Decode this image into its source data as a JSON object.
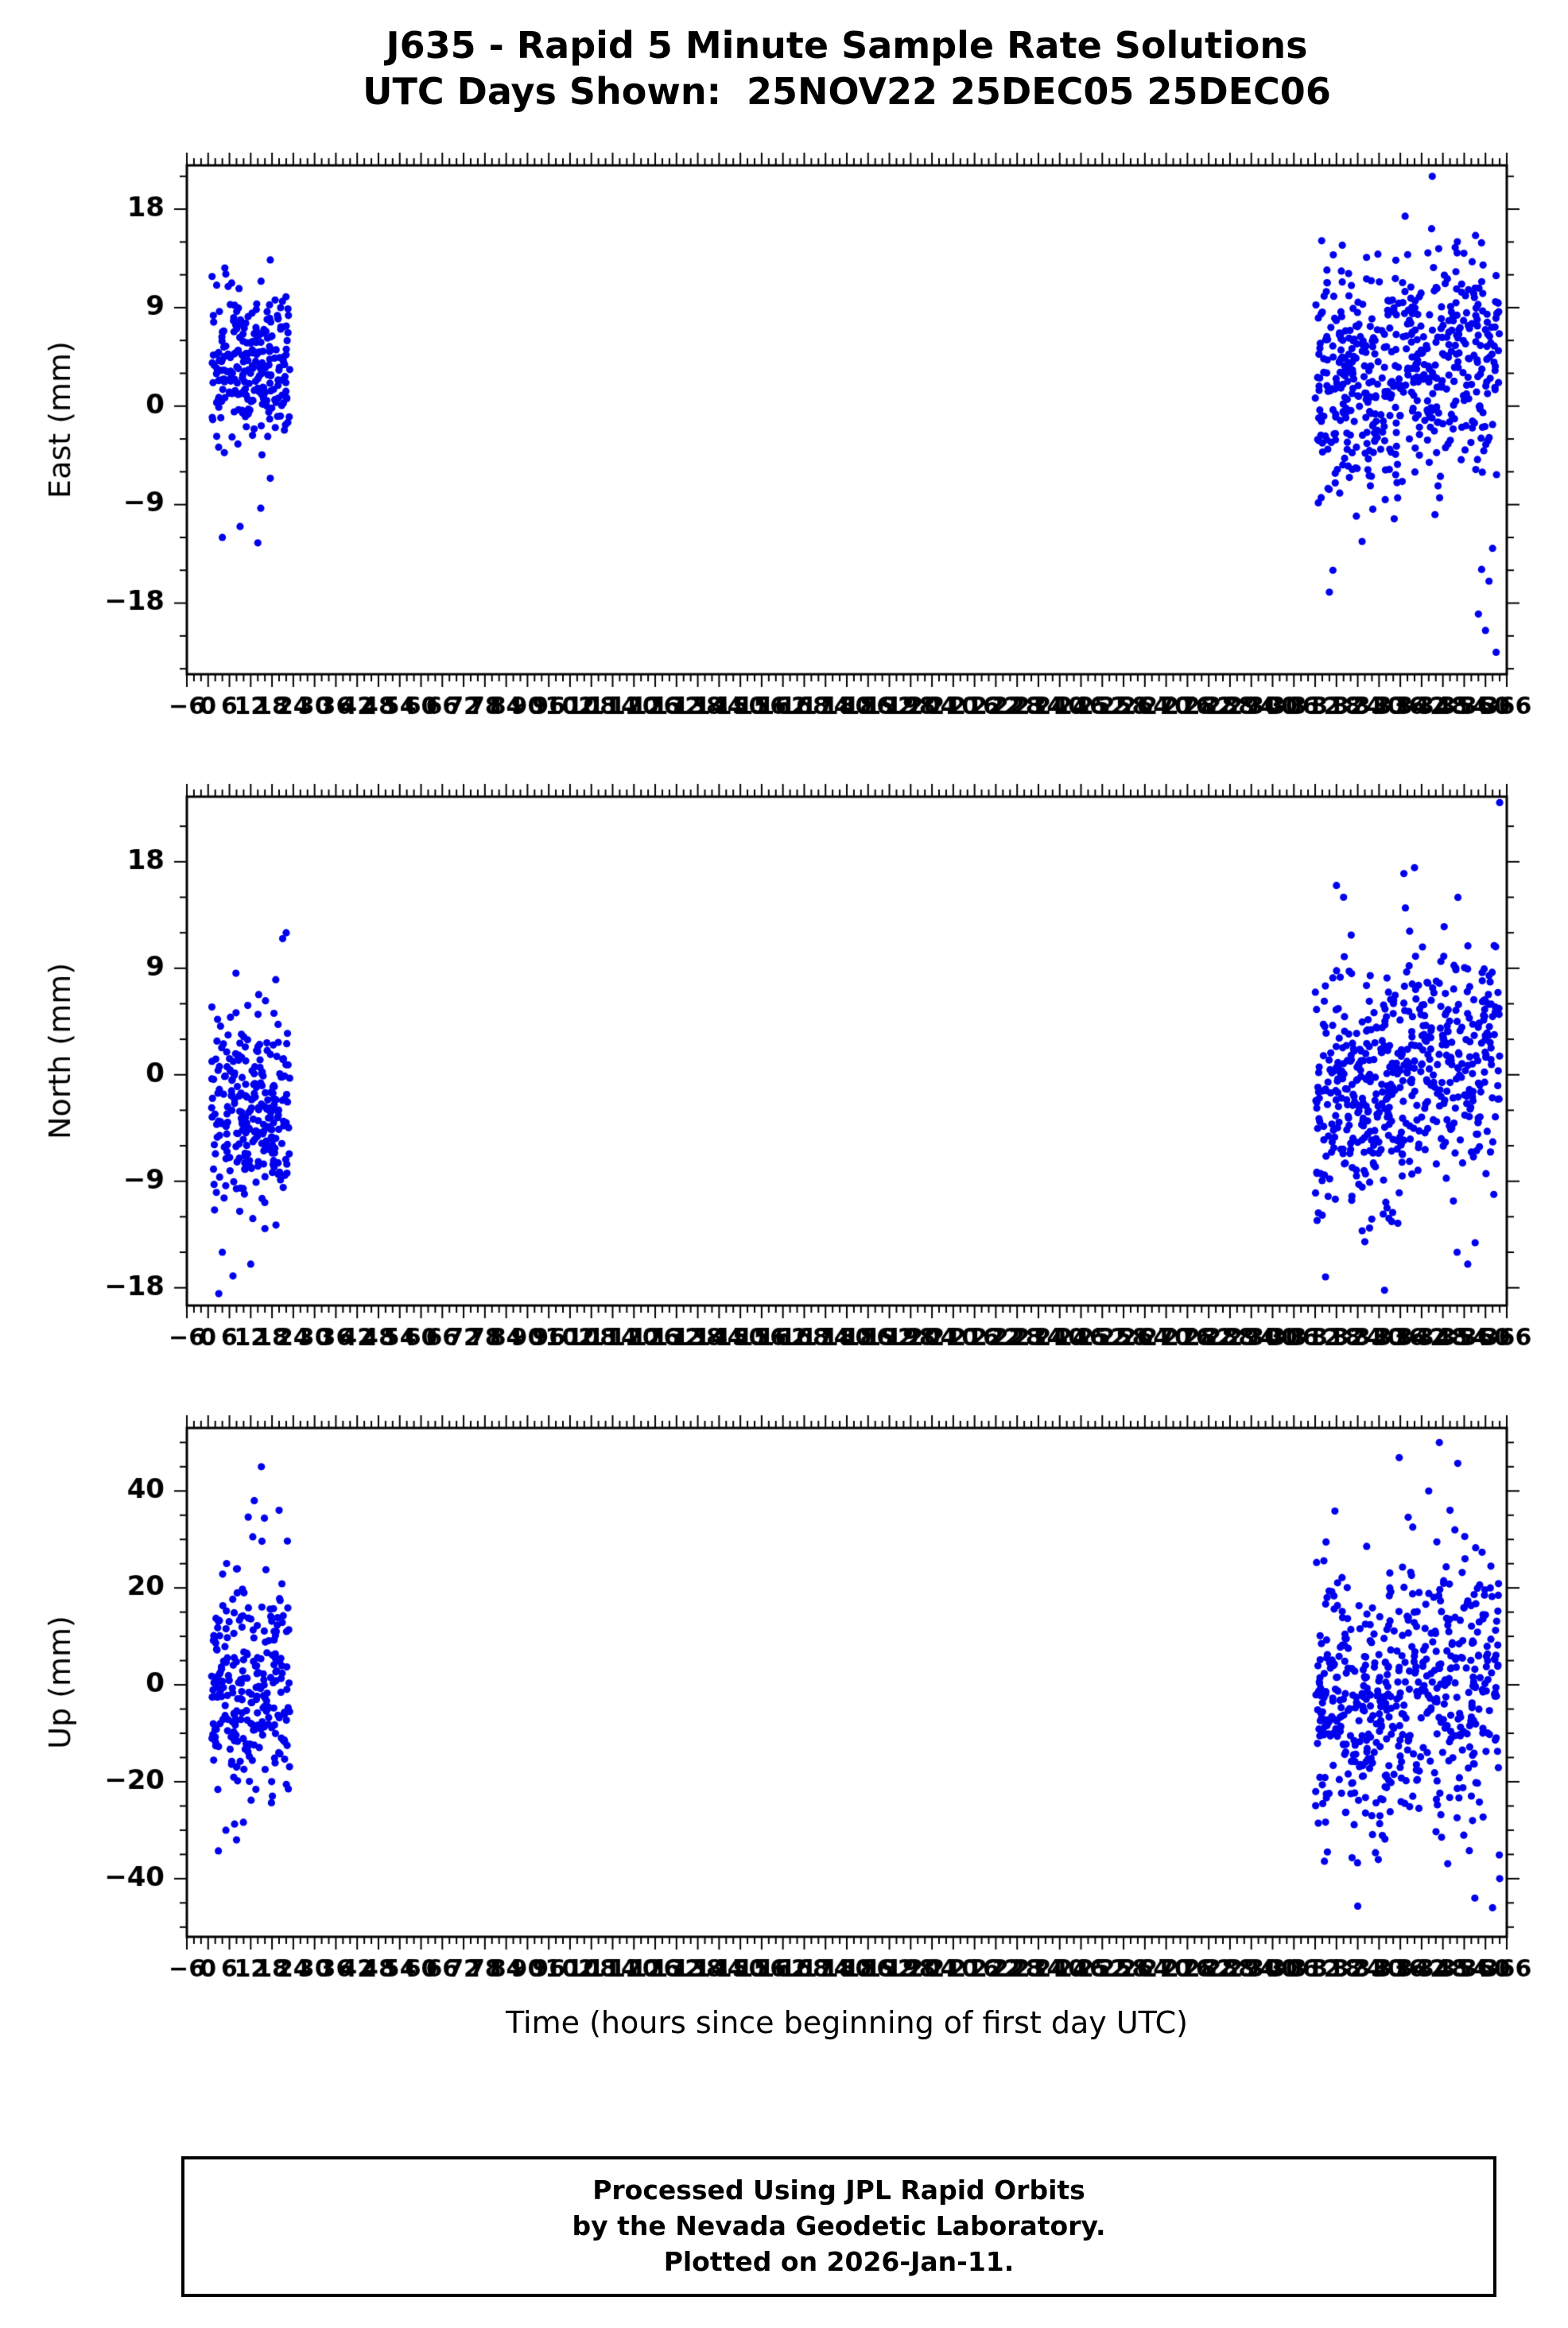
{
  "title": {
    "line1": "J635 - Rapid 5 Minute Sample Rate Solutions",
    "line2": "UTC Days Shown:  25NOV22 25DEC05 25DEC06"
  },
  "footer": {
    "line1": "Processed Using JPL Rapid Orbits",
    "line2": "by the Nevada Geodetic Laboratory.",
    "line3": "Plotted on 2026-Jan-11."
  },
  "chart_data": {
    "type": "scatter",
    "title": "J635 - Rapid 5 Minute Sample Rate Solutions",
    "subtitle": "UTC Days Shown:  25NOV22 25DEC05 25DEC06",
    "station": "J635",
    "days_shown": [
      "25NOV22",
      "25DEC05",
      "25DEC06"
    ],
    "point_color": "#0000ee",
    "xaxis": {
      "label": "Time (hours since beginning of first day UTC)",
      "min": -6,
      "max": 366,
      "tick_major": 6,
      "tick_minor": 2
    },
    "panels": [
      {
        "id": "east",
        "ylabel": "East (mm)",
        "ylim": [
          -24.5,
          22
        ],
        "yticks": [
          -18,
          -9,
          0,
          9,
          18
        ],
        "ytick_major": 9,
        "ytick_minor": 3,
        "clusters": [
          {
            "seed": 11,
            "x": [
              1,
              23
            ],
            "n": 260,
            "mean": 3.5,
            "sd": 3.4
          },
          {
            "seed": 12,
            "x": [
              312,
              336
            ],
            "n": 280,
            "mean": 2.0,
            "sd": 5.0
          },
          {
            "seed": 13,
            "x": [
              336,
              364
            ],
            "n": 280,
            "mean": 4.0,
            "sd": 5.2
          }
        ],
        "outliers": [
          [
            4,
            -12
          ],
          [
            9,
            -11
          ],
          [
            14,
            -12.5
          ],
          [
            316,
            -17
          ],
          [
            317,
            -15
          ],
          [
            345,
            21
          ],
          [
            352,
            14
          ],
          [
            358,
            -19
          ],
          [
            360,
            -20.5
          ],
          [
            361,
            -16
          ],
          [
            362,
            -13
          ],
          [
            363,
            -22.5
          ]
        ]
      },
      {
        "id": "north",
        "ylabel": "North (mm)",
        "ylim": [
          -19.5,
          23.5
        ],
        "yticks": [
          -18,
          -9,
          0,
          9,
          18
        ],
        "ytick_major": 9,
        "ytick_minor": 3,
        "clusters": [
          {
            "seed": 21,
            "x": [
              1,
              23
            ],
            "n": 260,
            "mean": -2.5,
            "sd": 4.2
          },
          {
            "seed": 22,
            "x": [
              312,
              336
            ],
            "n": 280,
            "mean": -1.5,
            "sd": 5.0
          },
          {
            "seed": 23,
            "x": [
              336,
              364
            ],
            "n": 280,
            "mean": 0.5,
            "sd": 5.0
          }
        ],
        "outliers": [
          [
            3,
            -18.5
          ],
          [
            4,
            -15
          ],
          [
            7,
            -17
          ],
          [
            12,
            -16
          ],
          [
            16,
            -13
          ],
          [
            21,
            11.5
          ],
          [
            22,
            12
          ],
          [
            318,
            16
          ],
          [
            320,
            15
          ],
          [
            337,
            17
          ],
          [
            340,
            17.5
          ],
          [
            352,
            -15
          ],
          [
            355,
            -16
          ],
          [
            364,
            23
          ]
        ]
      },
      {
        "id": "up",
        "ylabel": "Up (mm)",
        "ylim": [
          -52,
          53
        ],
        "yticks": [
          -40,
          -20,
          0,
          20,
          40
        ],
        "ytick_major": 20,
        "ytick_minor": 5,
        "clusters": [
          {
            "seed": 31,
            "x": [
              1,
              23
            ],
            "n": 260,
            "mean": 0,
            "sd": 12
          },
          {
            "seed": 32,
            "x": [
              312,
              336
            ],
            "n": 280,
            "mean": -5,
            "sd": 14
          },
          {
            "seed": 33,
            "x": [
              336,
              364
            ],
            "n": 280,
            "mean": -2,
            "sd": 15
          }
        ],
        "outliers": [
          [
            13,
            38
          ],
          [
            15,
            45
          ],
          [
            20,
            36
          ],
          [
            5,
            -30
          ],
          [
            8,
            -32
          ],
          [
            344,
            40
          ],
          [
            347,
            50
          ],
          [
            350,
            36
          ],
          [
            357,
            -44
          ],
          [
            362,
            -46
          ],
          [
            364,
            -40
          ]
        ]
      }
    ]
  }
}
